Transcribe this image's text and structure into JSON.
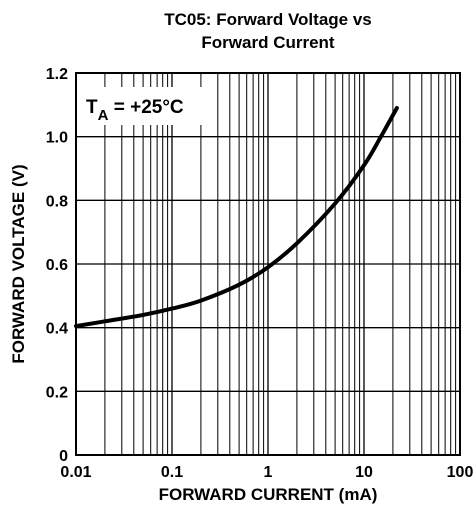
{
  "chart_data": {
    "type": "line",
    "title_line1": "TC05: Forward Voltage vs",
    "title_line2": "Forward Current",
    "xlabel": "FORWARD CURRENT (mA)",
    "ylabel": "FORWARD VOLTAGE (V)",
    "x_scale": "log",
    "xlim": [
      0.01,
      100
    ],
    "ylim": [
      0,
      1.2
    ],
    "x_ticks": [
      "0.01",
      "0.1",
      "1",
      "10",
      "100"
    ],
    "y_ticks": [
      "0",
      "0.2",
      "0.4",
      "0.6",
      "0.8",
      "1.0",
      "1.2"
    ],
    "grid": true,
    "annotation": {
      "main": "T",
      "sub": "A",
      "rest": " = +25°C"
    },
    "series": [
      {
        "x": [
          0.01,
          0.02,
          0.05,
          0.1,
          0.2,
          0.5,
          1,
          2,
          5,
          10,
          15,
          22
        ],
        "y": [
          0.405,
          0.42,
          0.44,
          0.46,
          0.485,
          0.535,
          0.59,
          0.665,
          0.79,
          0.91,
          1.0,
          1.09
        ]
      }
    ]
  }
}
